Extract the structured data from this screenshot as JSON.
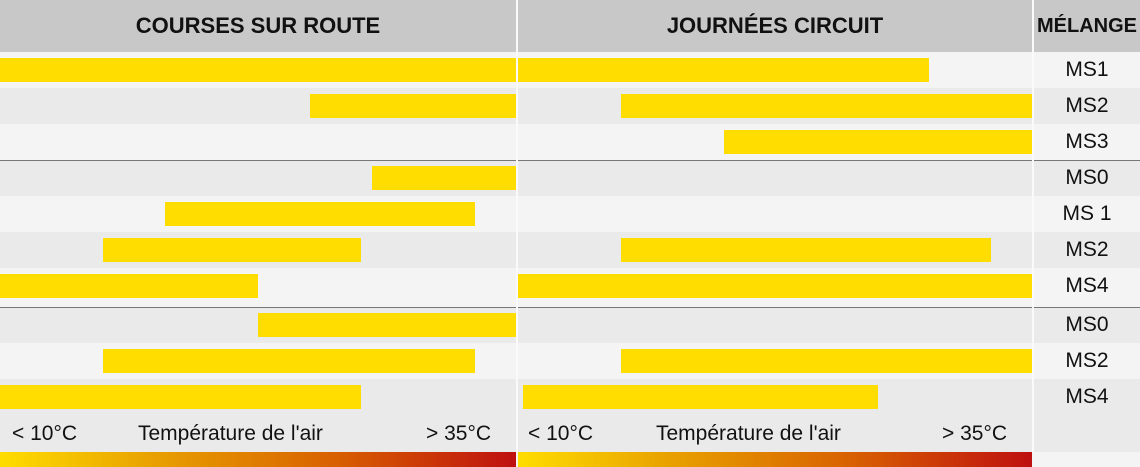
{
  "headers": {
    "road": "COURSES SUR ROUTE",
    "circuit": "JOURNÉES CIRCUIT",
    "mix": "MÉLANGE"
  },
  "footer": {
    "min": "< 10°C",
    "label": "Température de l'air",
    "max": "> 35°C"
  },
  "chart_data": {
    "type": "bar",
    "orientation": "horizontal-range",
    "x_range_celsius": [
      10,
      35
    ],
    "xlabel": "Température de l'air",
    "bar_color": "#ffdd00",
    "groups": [
      [
        0,
        1,
        2
      ],
      [
        3,
        4,
        5,
        6
      ],
      [
        7,
        8,
        9
      ]
    ],
    "rows": [
      {
        "mix": "MS1",
        "road": [
          10,
          35
        ],
        "circuit": [
          10,
          30
        ]
      },
      {
        "mix": "MS2",
        "road": [
          25,
          35
        ],
        "circuit": [
          15,
          35
        ]
      },
      {
        "mix": "MS3",
        "road": null,
        "circuit": [
          20,
          35
        ]
      },
      {
        "mix": "MS0",
        "road": [
          28,
          35
        ],
        "circuit": null
      },
      {
        "mix": "MS 1",
        "road": [
          18,
          33
        ],
        "circuit": null
      },
      {
        "mix": "MS2",
        "road": [
          15,
          27.5
        ],
        "circuit": [
          15,
          33
        ]
      },
      {
        "mix": "MS4",
        "road": [
          10,
          22.5
        ],
        "circuit": [
          10,
          35
        ]
      },
      {
        "mix": "MS0",
        "road": [
          22.5,
          35
        ],
        "circuit": null
      },
      {
        "mix": "MS2",
        "road": [
          15,
          33
        ],
        "circuit": [
          15,
          35
        ]
      },
      {
        "mix": "MS4",
        "road": [
          10,
          27.5
        ],
        "circuit": [
          10,
          27.5
        ]
      }
    ]
  }
}
